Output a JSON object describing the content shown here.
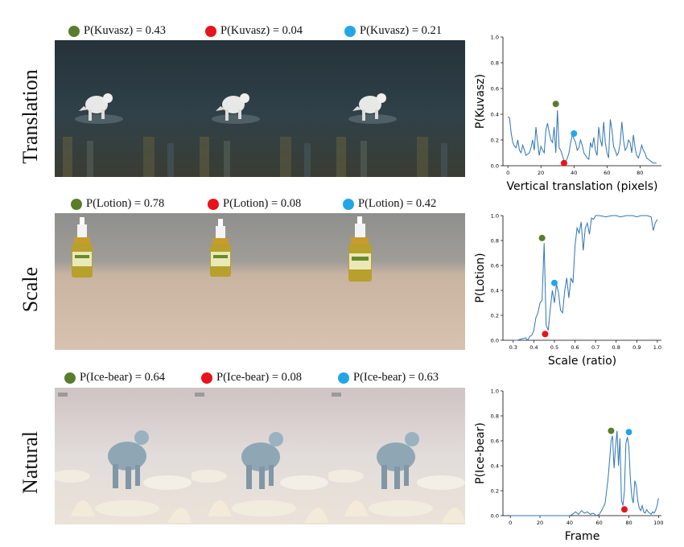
{
  "colors": {
    "green": "#5a7d2b",
    "red": "#e8141b",
    "blue": "#22a6e8",
    "line": "#2f74b5"
  },
  "rows": [
    {
      "label": "Translation",
      "captions": [
        {
          "text": "P(Kuvasz) = 0.43",
          "color": "green"
        },
        {
          "text": "P(Kuvasz) = 0.04",
          "color": "red"
        },
        {
          "text": "P(Kuvasz) = 0.21",
          "color": "blue"
        }
      ],
      "image_subject": "white dog running in water"
    },
    {
      "label": "Scale",
      "captions": [
        {
          "text": "P(Lotion) = 0.78",
          "color": "green"
        },
        {
          "text": "P(Lotion) = 0.08",
          "color": "red"
        },
        {
          "text": "P(Lotion) = 0.42",
          "color": "blue"
        }
      ],
      "image_subject": "lotion bottle on table"
    },
    {
      "label": "Natural",
      "captions": [
        {
          "text": "P(Ice-bear) = 0.64",
          "color": "green"
        },
        {
          "text": "P(Ice-bear) = 0.08",
          "color": "red"
        },
        {
          "text": "P(Ice-bear) = 0.63",
          "color": "blue"
        }
      ],
      "image_subject": "polar bear on ice"
    }
  ],
  "chart_data": [
    {
      "type": "line",
      "xlabel": "Vertical translation (pixels)",
      "ylabel": "P(Kuvasz)",
      "xlim": [
        -3,
        93
      ],
      "ylim": [
        0,
        1.0
      ],
      "xticks": [
        0,
        20,
        40,
        60,
        80
      ],
      "yticks": [
        0.0,
        0.2,
        0.4,
        0.6,
        0.8,
        1.0
      ],
      "x": [
        0,
        1,
        2,
        3,
        4,
        5,
        6,
        7,
        8,
        9,
        10,
        11,
        12,
        13,
        14,
        15,
        16,
        17,
        18,
        19,
        20,
        21,
        22,
        23,
        24,
        25,
        26,
        27,
        28,
        29,
        30,
        31,
        32,
        33,
        34,
        35,
        36,
        37,
        38,
        39,
        40,
        41,
        42,
        43,
        44,
        45,
        46,
        47,
        48,
        49,
        50,
        51,
        52,
        53,
        54,
        55,
        56,
        57,
        58,
        59,
        60,
        61,
        62,
        63,
        64,
        65,
        66,
        67,
        68,
        69,
        70,
        71,
        72,
        73,
        74,
        75,
        76,
        77,
        78,
        79,
        80,
        81,
        82,
        83,
        84,
        85,
        86,
        87,
        88,
        89,
        90
      ],
      "y": [
        0.38,
        0.37,
        0.25,
        0.18,
        0.15,
        0.14,
        0.2,
        0.12,
        0.1,
        0.16,
        0.12,
        0.08,
        0.09,
        0.1,
        0.14,
        0.2,
        0.12,
        0.3,
        0.18,
        0.08,
        0.15,
        0.12,
        0.1,
        0.28,
        0.33,
        0.26,
        0.2,
        0.18,
        0.3,
        0.1,
        0.43,
        0.14,
        0.12,
        0.08,
        0.04,
        0.03,
        0.06,
        0.1,
        0.18,
        0.24,
        0.21,
        0.18,
        0.12,
        0.14,
        0.2,
        0.16,
        0.1,
        0.08,
        0.06,
        0.05,
        0.18,
        0.14,
        0.22,
        0.12,
        0.08,
        0.3,
        0.2,
        0.15,
        0.34,
        0.18,
        0.1,
        0.06,
        0.36,
        0.28,
        0.15,
        0.12,
        0.08,
        0.1,
        0.18,
        0.34,
        0.2,
        0.12,
        0.14,
        0.2,
        0.18,
        0.1,
        0.24,
        0.14,
        0.08,
        0.06,
        0.1,
        0.16,
        0.12,
        0.1,
        0.06,
        0.05,
        0.04,
        0.03,
        0.02,
        0.02,
        0.02
      ],
      "markers": [
        {
          "x": 29,
          "y": 0.48,
          "color": "green"
        },
        {
          "x": 34,
          "y": 0.02,
          "color": "red"
        },
        {
          "x": 40,
          "y": 0.25,
          "color": "blue"
        }
      ]
    },
    {
      "type": "line",
      "xlabel": "Scale (ratio)",
      "ylabel": "P(Lotion)",
      "xlim": [
        0.25,
        1.02
      ],
      "ylim": [
        0,
        1.0
      ],
      "xticks": [
        0.3,
        0.4,
        0.5,
        0.6,
        0.7,
        0.8,
        0.9,
        1.0
      ],
      "yticks": [
        0.0,
        0.2,
        0.4,
        0.6,
        0.8,
        1.0
      ],
      "x": [
        0.3,
        0.32,
        0.34,
        0.36,
        0.37,
        0.38,
        0.39,
        0.4,
        0.41,
        0.42,
        0.43,
        0.44,
        0.45,
        0.46,
        0.47,
        0.48,
        0.49,
        0.5,
        0.51,
        0.52,
        0.53,
        0.54,
        0.55,
        0.56,
        0.57,
        0.58,
        0.59,
        0.6,
        0.61,
        0.62,
        0.63,
        0.64,
        0.65,
        0.66,
        0.67,
        0.68,
        0.69,
        0.7,
        0.72,
        0.75,
        0.78,
        0.8,
        0.82,
        0.85,
        0.88,
        0.9,
        0.92,
        0.95,
        0.97,
        0.98,
        0.99,
        1.0
      ],
      "y": [
        0.0,
        0.0,
        0.01,
        0.02,
        0.0,
        0.03,
        0.04,
        0.08,
        0.18,
        0.22,
        0.3,
        0.32,
        0.78,
        0.12,
        0.08,
        0.25,
        0.4,
        0.3,
        0.45,
        0.38,
        0.24,
        0.22,
        0.4,
        0.5,
        0.34,
        0.5,
        0.46,
        0.75,
        0.9,
        0.86,
        0.95,
        0.72,
        0.9,
        0.94,
        0.85,
        0.98,
        0.97,
        1.0,
        1.0,
        0.99,
        1.0,
        1.0,
        0.99,
        1.0,
        1.0,
        0.99,
        1.0,
        1.0,
        0.99,
        0.88,
        0.94,
        0.97
      ],
      "markers": [
        {
          "x": 0.44,
          "y": 0.82,
          "color": "green"
        },
        {
          "x": 0.455,
          "y": 0.05,
          "color": "red"
        },
        {
          "x": 0.5,
          "y": 0.46,
          "color": "blue"
        }
      ]
    },
    {
      "type": "line",
      "xlabel": "Frame",
      "ylabel": "P(Ice-bear)",
      "xlim": [
        -5,
        102
      ],
      "ylim": [
        0,
        1.0
      ],
      "xticks": [
        0,
        20,
        40,
        60,
        80,
        100
      ],
      "yticks": [
        0.0,
        0.2,
        0.4,
        0.6,
        0.8,
        1.0
      ],
      "x": [
        0,
        5,
        10,
        15,
        20,
        25,
        30,
        35,
        40,
        42,
        44,
        46,
        48,
        50,
        52,
        54,
        56,
        58,
        60,
        62,
        64,
        66,
        67,
        68,
        69,
        70,
        71,
        72,
        73,
        74,
        75,
        76,
        77,
        78,
        79,
        80,
        81,
        82,
        83,
        84,
        85,
        86,
        87,
        88,
        89,
        90,
        91,
        92,
        93,
        94,
        95,
        96,
        97,
        98,
        99,
        100
      ],
      "y": [
        0.0,
        0.0,
        0.0,
        0.0,
        0.0,
        0.0,
        0.0,
        0.0,
        0.0,
        0.01,
        0.03,
        0.01,
        0.04,
        0.02,
        0.03,
        0.01,
        0.02,
        0.0,
        0.01,
        0.05,
        0.1,
        0.3,
        0.45,
        0.6,
        0.64,
        0.38,
        0.55,
        0.68,
        0.4,
        0.62,
        0.12,
        0.08,
        0.2,
        0.58,
        0.63,
        0.55,
        0.3,
        0.15,
        0.1,
        0.28,
        0.24,
        0.12,
        0.06,
        0.04,
        0.08,
        0.03,
        0.02,
        0.05,
        0.03,
        0.02,
        0.01,
        0.03,
        0.02,
        0.04,
        0.08,
        0.14
      ],
      "markers": [
        {
          "x": 68,
          "y": 0.68,
          "color": "green"
        },
        {
          "x": 77,
          "y": 0.05,
          "color": "red"
        },
        {
          "x": 80,
          "y": 0.67,
          "color": "blue"
        }
      ]
    }
  ]
}
